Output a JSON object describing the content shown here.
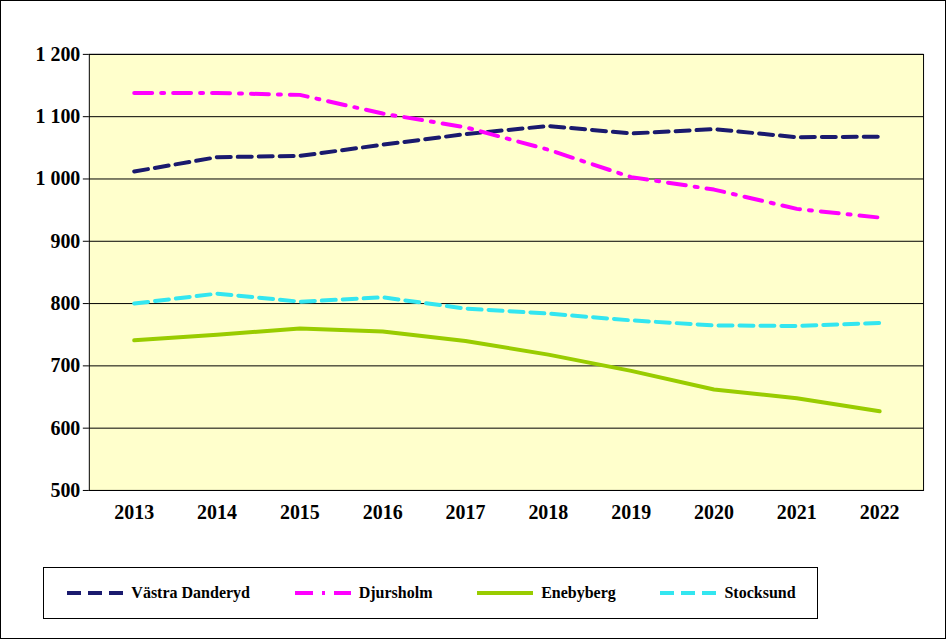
{
  "chart_data": {
    "type": "line",
    "categories": [
      "2013",
      "2014",
      "2015",
      "2016",
      "2017",
      "2018",
      "2019",
      "2020",
      "2021",
      "2022"
    ],
    "series": [
      {
        "name": "Västra Danderyd",
        "color": "#1a1a6e",
        "line_style": "dashed",
        "values": [
          1012,
          1035,
          1037,
          1055,
          1072,
          1085,
          1073,
          1080,
          1067,
          1068
        ]
      },
      {
        "name": "Djursholm",
        "color": "#ff00ff",
        "line_style": "dash-dot",
        "values": [
          1138,
          1138,
          1135,
          1105,
          1083,
          1047,
          1003,
          983,
          952,
          938
        ]
      },
      {
        "name": "Enebyberg",
        "color": "#99cc00",
        "line_style": "solid",
        "values": [
          741,
          750,
          760,
          755,
          740,
          718,
          692,
          662,
          648,
          627
        ]
      },
      {
        "name": "Stocksund",
        "color": "#33e6f0",
        "line_style": "dashed",
        "values": [
          800,
          816,
          803,
          810,
          792,
          784,
          773,
          765,
          764,
          769
        ]
      }
    ],
    "ylim": [
      500,
      1200
    ],
    "yticks": [
      500,
      600,
      700,
      800,
      900,
      {
        "value": 1000,
        "label": "1 000"
      },
      {
        "value": 1100,
        "label": "1 100"
      },
      {
        "value": 1200,
        "label": "1 200"
      }
    ],
    "grid": true,
    "legend": "bottom"
  }
}
